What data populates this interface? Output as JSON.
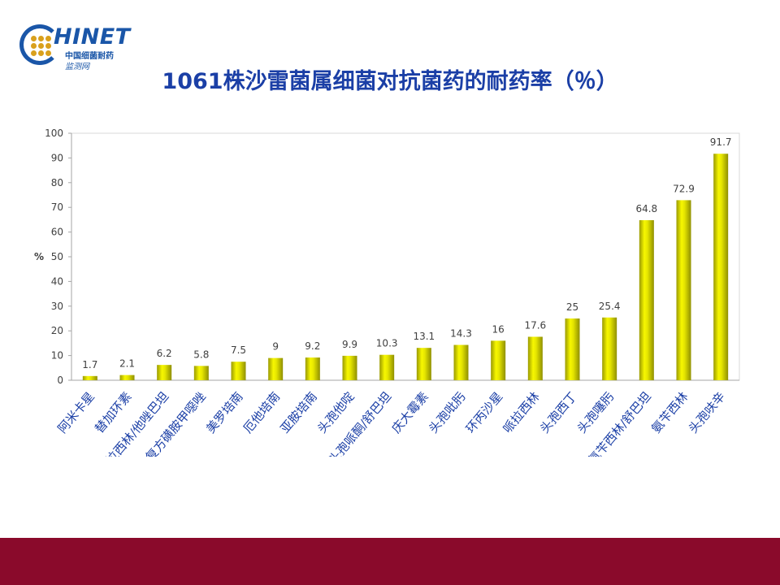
{
  "logo": {
    "name": "HINET",
    "line1": "中国细菌耐药",
    "line2": "监测网"
  },
  "title": "1061株沙雷菌属细菌对抗菌药的耐药率（％）",
  "colors": {
    "bar_fill": "#e6e600",
    "bar_dark": "#8f8f00",
    "title": "#1b3fa6",
    "footer": "#8a0a2b",
    "axis": "#a6a6a6"
  },
  "chart_data": {
    "type": "bar",
    "title": "",
    "ylabel": "%",
    "ylim": [
      0,
      100
    ],
    "yticks": [
      0,
      10,
      20,
      30,
      40,
      50,
      60,
      70,
      80,
      90,
      100
    ],
    "grid": false,
    "categories": [
      "阿米卡星",
      "替加环素",
      "哌拉西林/他唑巴坦",
      "复方磺胺甲噁唑",
      "美罗培南",
      "厄他培南",
      "亚胺培南",
      "头孢他啶",
      "头孢哌酮/舒巴坦",
      "庆大霉素",
      "头孢吡肟",
      "环丙沙星",
      "哌拉西林",
      "头孢西丁",
      "头孢噻肟",
      "氨苄西林/舒巴坦",
      "氨苄西林",
      "头孢呋辛"
    ],
    "values": [
      1.7,
      2.1,
      6.2,
      5.8,
      7.5,
      9,
      9.2,
      9.9,
      10.3,
      13.1,
      14.3,
      16,
      17.6,
      25,
      25.4,
      64.8,
      72.9,
      91.7
    ],
    "data_labels": [
      "1.7",
      "2.1",
      "6.2",
      "5.8",
      "7.5",
      "9",
      "9.2",
      "9.9",
      "10.3",
      "13.1",
      "14.3",
      "16",
      "17.6",
      "25",
      "25.4",
      "64.8",
      "72.9",
      "91.7"
    ]
  }
}
